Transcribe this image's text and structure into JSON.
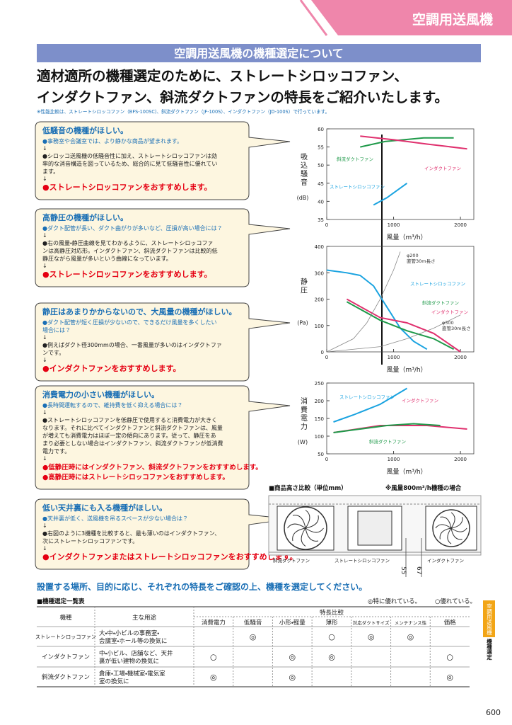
{
  "header": {
    "tab": "空調用送風機",
    "section_title": "空調用送風機の機種選定について",
    "headline": [
      "適材適所の機種選定のために、ストレートシロッコファン、",
      "インダクトファン、斜流ダクトファンの特長をご紹介いたします。"
    ],
    "note": "※性能比較は、ストレートシロッコファン（BFS-100SC)、斜流ダクトファン（JF-100S）、インダクトファン（JD-100S）で行っています。"
  },
  "arrow": "↓",
  "cards": [
    {
      "title": "低騒音の機種がほしい。",
      "intro": [
        "●事務室や会議室では、より静かな商品が望まれます。"
      ],
      "detail": [
        "●シロッコ送風機の低騒音性に加え、ストレートシロッコファンは効",
        "率的な消音構造を図っているため、総合的に見て低騒音性に優れてい",
        "ます。"
      ],
      "recommend": [
        "●ストレートシロッコファンをおすすめします。"
      ]
    },
    {
      "title": "高静圧の機種がほしい。",
      "intro": [
        "●ダクト配管が長い、ダクト曲がりが多いなど、圧損が高い場合には？"
      ],
      "detail": [
        "●右の風量・静圧曲線を見てわかるように、ストレートシロッコファ",
        "ンは高静圧対応形。インダクトファン、斜流ダクトファンは比較的低",
        "静圧ながら風量が多いという曲線になっています。"
      ],
      "recommend": [
        "●ストレートシロッコファンをおすすめします。"
      ]
    },
    {
      "title": "静圧はあまりかからないので、大風量の機種がほしい。",
      "intro": [
        "●ダクト配管が短く圧損が少ないので、できるだけ風量を多くしたい",
        "場合には？"
      ],
      "detail": [
        "●例えばダクト径300mmの場合、一番風量が多いのはインダクトファ",
        "ンです。"
      ],
      "recommend": [
        "●インダクトファンをおすすめします。"
      ]
    },
    {
      "title": "消費電力の小さい機種がほしい。",
      "intro": [
        "●長時間運転するので、維持費を低く抑える場合には？"
      ],
      "detail": [
        "●ストレートシロッコファンを低静圧で使用すると消費電力が大きく",
        "なります。それに比べてインダクトファンと斜流ダクトファンは、風量",
        "が増えても消費電力はほぼ一定の傾向にあります。従って、静圧をあ",
        "まり必要としない場合はインダクトファン、斜流ダクトファンが低消費",
        "電力です。"
      ],
      "recommend": [
        "●低静圧時にはインダクトファン、斜流ダクトファンをおすすめします。",
        "●高静圧時にはストレートシロッコファンをおすすめします。"
      ]
    },
    {
      "title": "低い天井裏にも入る機種がほしい。",
      "intro": [
        "●天井裏が低く、送風機を吊るスペースが少ない場合は？"
      ],
      "detail": [
        "●右図のように3機種を比較すると、最も薄いのはインダクトファン、",
        "次にストレートシロッコファンです。"
      ],
      "recommend": [
        "●インダクトファンまたはストレートシロッコファンをおすすめします。"
      ]
    }
  ],
  "charts": [
    {
      "type": "line",
      "ylabel": "吸込騒音",
      "yunit": "(dB)",
      "xlabel": "風量（m³/h）",
      "xlim": [
        0,
        2200
      ],
      "ylim": [
        35,
        60
      ],
      "xticks": [
        0,
        1000,
        2000
      ],
      "yticks": [
        35,
        40,
        45,
        50,
        55,
        60
      ],
      "series": [
        {
          "name": "斜流ダクトファン",
          "color": "#1f9a4a",
          "x": [
            500,
            870,
            1450,
            1900
          ],
          "values": [
            55,
            56.5,
            57.5,
            57.5
          ]
        },
        {
          "name": "インダクトファン",
          "color": "#e0306e",
          "x": [
            500,
            1000,
            1500,
            2100
          ],
          "values": [
            58,
            57,
            55.8,
            54.5
          ]
        },
        {
          "name": "ストレートシロッコファン",
          "color": "#1aa3e0",
          "x": [
            700,
            900,
            1200
          ],
          "values": [
            39,
            41,
            45
          ]
        }
      ]
    },
    {
      "type": "line",
      "ylabel": "静圧",
      "yunit": "(Pa)",
      "xlabel": "風量（m³/h）",
      "xlim": [
        0,
        2200
      ],
      "ylim": [
        0,
        400
      ],
      "xticks": [
        0,
        1000,
        2000
      ],
      "yticks": [
        0,
        100,
        200,
        300,
        400
      ],
      "series": [
        {
          "name": "ストレートシロッコファン",
          "color": "#1aa3e0",
          "x": [
            0,
            300,
            500,
            700,
            900,
            1100,
            1300,
            1500
          ],
          "values": [
            310,
            300,
            290,
            250,
            170,
            90,
            40,
            10
          ]
        },
        {
          "name": "斜流ダクトファン",
          "color": "#1f9a4a",
          "x": [
            300,
            800,
            1200,
            1600,
            1900
          ],
          "values": [
            190,
            120,
            80,
            50,
            10
          ]
        },
        {
          "name": "インダクトファン",
          "color": "#e0306e",
          "x": [
            300,
            800,
            1200,
            1600,
            2000
          ],
          "values": [
            200,
            130,
            110,
            70,
            0
          ]
        },
        {
          "name": "φ200",
          "note": "直管30m長さ",
          "color": "#888888",
          "x": [
            0,
            400,
            600,
            800,
            1000,
            1100
          ],
          "values": [
            0,
            50,
            110,
            200,
            310,
            380
          ]
        },
        {
          "name": "φ300",
          "note": "直管30m長さ",
          "color": "#888888",
          "x": [
            0,
            800,
            1200,
            1600,
            2000
          ],
          "values": [
            0,
            20,
            50,
            90,
            140
          ]
        }
      ]
    },
    {
      "type": "line",
      "ylabel": "消費電力",
      "yunit": "(W)",
      "xlabel": "風量（m³/h）",
      "xlim": [
        0,
        2200
      ],
      "ylim": [
        50,
        250
      ],
      "xticks": [
        0,
        1000,
        2000
      ],
      "yticks": [
        50,
        100,
        150,
        200,
        250
      ],
      "series": [
        {
          "name": "ストレートシロッコファン",
          "color": "#1aa3e0",
          "x": [
            100,
            400,
            800,
            1200
          ],
          "values": [
            140,
            160,
            190,
            235
          ]
        },
        {
          "name": "インダクトファン",
          "color": "#e0306e",
          "x": [
            100,
            800,
            1500,
            2100
          ],
          "values": [
            110,
            130,
            130,
            120
          ]
        },
        {
          "name": "斜流ダクトファン",
          "color": "#1f9a4a",
          "x": [
            100,
            500,
            900,
            1300,
            1700
          ],
          "values": [
            110,
            120,
            130,
            135,
            130
          ]
        }
      ]
    }
  ],
  "height_compare": {
    "title": "■商品高さ比較（単位mm）",
    "note": "※風量800m³/h機種の場合",
    "labels": [
      "斜流ダクトファン",
      "ストレートシロッコファン",
      "インダクトファン"
    ],
    "dimensions": [
      "55",
      "67"
    ]
  },
  "guide": "設置する場所、目的に応じ、それぞれの特長をご確認の上、機種を選定してください。",
  "table": {
    "title": "■機種選定一覧表",
    "legend": [
      "◎特に優れている。",
      "○優れている。"
    ],
    "headers": [
      "機種",
      "主な用途"
    ],
    "group": "特長比較",
    "columns": [
      "消費電力",
      "低騒音",
      "小形・軽量",
      "薄形",
      "対応ダクトサイズ",
      "メンテナンス性",
      "価格"
    ],
    "rows": [
      {
        "name": "ストレートシロッコファン",
        "use": [
          "大・中・小ビルの事務室・",
          "会議室・ホール等の換気に"
        ],
        "marks": [
          null,
          "◎",
          null,
          "○",
          "◎",
          "◎",
          null
        ]
      },
      {
        "name": "インダクトファン",
        "use": [
          "中・小ビル、店舗など、天井",
          "裏が低い建物の換気に"
        ],
        "marks": [
          "○",
          null,
          "◎",
          "◎",
          null,
          null,
          "○"
        ]
      },
      {
        "name": "斜流ダクトファン",
        "use": [
          "倉庫・工場・機械室・電気室",
          "室の換気に"
        ],
        "marks": [
          "◎",
          null,
          "◎",
          null,
          null,
          null,
          "◎"
        ]
      }
    ]
  },
  "side_tab": {
    "title": "空調用送風機",
    "subtitle": "機種選定"
  },
  "page_number": "600"
}
